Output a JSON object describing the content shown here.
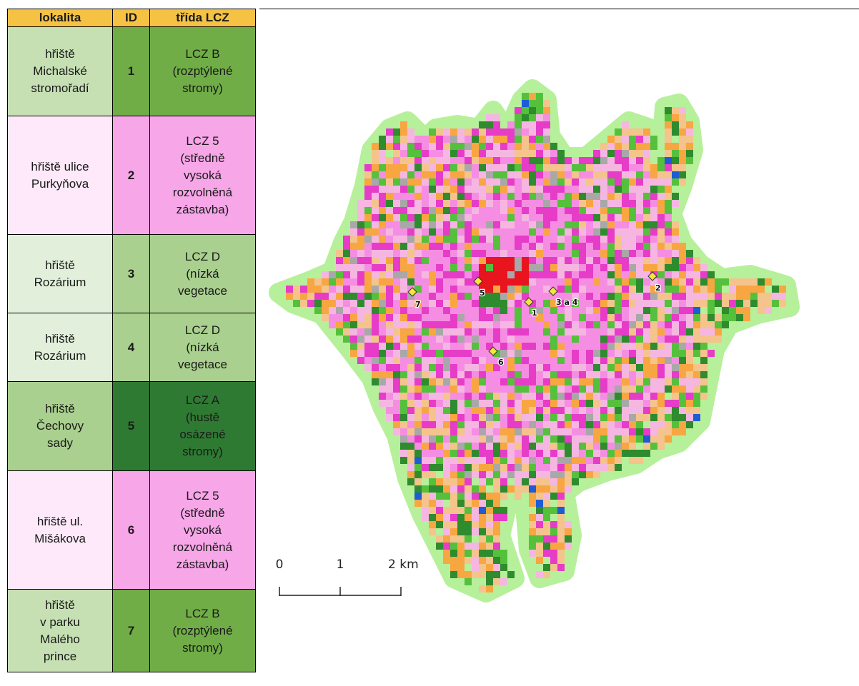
{
  "table": {
    "headers": {
      "location": "lokalita",
      "id": "ID",
      "lcz_class": "třída LCZ"
    },
    "rows": [
      {
        "location": "hřiště\nMichalské\nstromořadí",
        "id": "1",
        "lcz_class": "LCZ B\n(rozptýlené\nstromy)",
        "loc_color": "#c6e0b4",
        "id_color": "#70ad47",
        "class_color": "#70ad47"
      },
      {
        "location": "hřiště ulice\nPurkyňova",
        "id": "2",
        "lcz_class": "LCZ 5\n(středně\nvysoká\nrozvolněná\nzástavba)",
        "loc_color": "#fde9f9",
        "id_color": "#f7a6e8",
        "class_color": "#f7a6e8"
      },
      {
        "location": "hřiště\nRozárium",
        "id": "3",
        "lcz_class": "LCZ D\n(nízká\nvegetace",
        "loc_color": "#e2efda",
        "id_color": "#a9d08e",
        "class_color": "#a9d08e"
      },
      {
        "location": "hřiště\nRozárium",
        "id": "4",
        "lcz_class": "LCZ D\n(nízká\nvegetace",
        "loc_color": "#e2efda",
        "id_color": "#a9d08e",
        "class_color": "#a9d08e"
      },
      {
        "location": "hřiště\nČechovy\nsady",
        "id": "5",
        "lcz_class": "LCZ A\n(hustě\nosázené\nstromy)",
        "loc_color": "#a9d08e",
        "id_color": "#2f7a33",
        "class_color": "#2f7a33"
      },
      {
        "location": "hřiště ul.\nMišákova",
        "id": "6",
        "lcz_class": "LCZ 5\n(středně\nvysoká\nrozvolněná\nzástavba)",
        "loc_color": "#fde9f9",
        "id_color": "#f7a6e8",
        "class_color": "#f7a6e8"
      },
      {
        "location": "hřiště\nv parku\nMalého\nprince",
        "id": "7",
        "lcz_class": "LCZ B\n(rozptýlené\nstromy)",
        "loc_color": "#c6e0b4",
        "id_color": "#70ad47",
        "class_color": "#70ad47"
      }
    ]
  },
  "map": {
    "markers": [
      {
        "label": "1"
      },
      {
        "label": "2"
      },
      {
        "label": "3 a 4"
      },
      {
        "label": "5"
      },
      {
        "label": "6"
      },
      {
        "label": "7"
      }
    ],
    "scale_bar": {
      "labels": [
        "0",
        "1",
        "2 km"
      ]
    },
    "colors": {
      "buffer": "#b7f09a",
      "light_pink": "#f6b6e2",
      "magenta": "#e63cc8",
      "pink": "#f58ee2",
      "orange": "#f8a642",
      "tan": "#f4c48c",
      "dark_green": "#2e8b2e",
      "green": "#55c03c",
      "red": "#e8141e",
      "grey": "#a8a8a8",
      "blue": "#1e5cd6",
      "marker": "#f5e63c"
    }
  }
}
